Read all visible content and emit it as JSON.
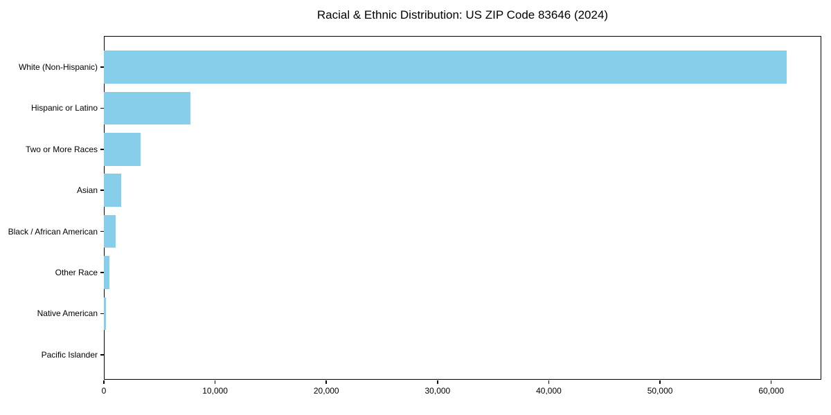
{
  "chart_data": {
    "type": "bar",
    "orientation": "horizontal",
    "title": "Racial & Ethnic Distribution: US ZIP Code 83646 (2024)",
    "xlabel": "",
    "ylabel": "",
    "categories": [
      "White (Non-Hispanic)",
      "Hispanic or Latino",
      "Two or More Races",
      "Asian",
      "Black / African American",
      "Other Race",
      "Native American",
      "Pacific Islander"
    ],
    "values": [
      61400,
      7800,
      3300,
      1550,
      1050,
      500,
      200,
      0
    ],
    "xlim": [
      0,
      64500
    ],
    "xticks": [
      0,
      10000,
      20000,
      30000,
      40000,
      50000,
      60000
    ],
    "xtick_labels": [
      "0",
      "10,000",
      "20,000",
      "30,000",
      "40,000",
      "50,000",
      "60,000"
    ],
    "bar_color": "#87CEEB",
    "text_color": "#000000",
    "background_color": "#ffffff",
    "grid": false,
    "legend": null
  }
}
